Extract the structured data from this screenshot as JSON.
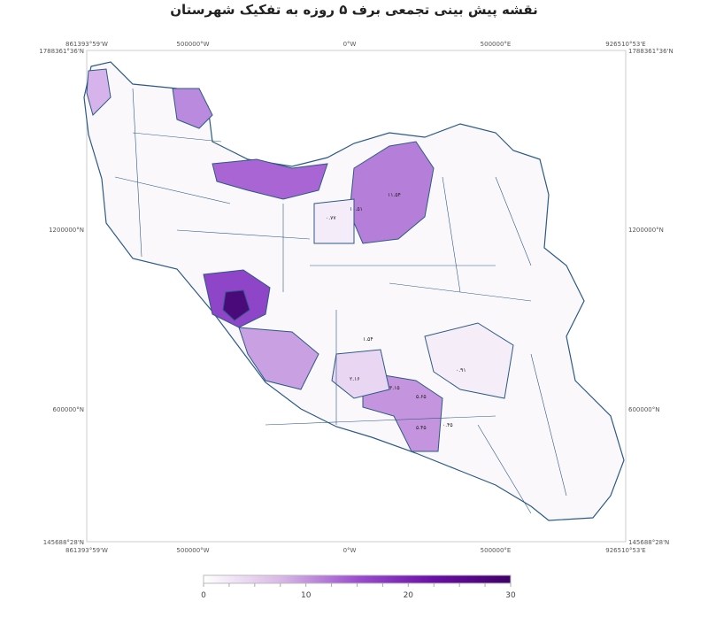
{
  "title": "نقشه پیش بینی تجمعی برف ۵ روزه به تفکیک شهرستان",
  "axes": {
    "top": [
      "861393°59'W",
      "500000°W",
      "0°W",
      "500000°E",
      "926510°53'E"
    ],
    "bottom": [
      "861393°59'W",
      "500000°W",
      "0°W",
      "500000°E",
      "926510°53'E"
    ],
    "left": [
      "1788361°36'N",
      "1200000°N",
      "600000°N",
      "145688°28'N"
    ],
    "right": [
      "1788361°36'N",
      "1200000°N",
      "600000°N",
      "145688°28'N"
    ]
  },
  "colorbar": {
    "min": 0,
    "max": 30,
    "ticks": [
      "0",
      "10",
      "20",
      "30"
    ],
    "colors": [
      "#ffffff",
      "#d9b8e6",
      "#9b4fcf",
      "#6a0fa6",
      "#3f0068"
    ]
  },
  "map_labels": [
    "۱۱.۵۴",
    "۱۰.۵۱",
    "۰.۷۷",
    "۱.۵۴",
    "۵.۴۵",
    "۳.۱۵",
    "۵.۶۵",
    "۰.۹۱",
    "۲.۱۶",
    "۰.۴۵"
  ],
  "colors": {
    "border": "#2b5a85",
    "frame": "#cccccc"
  }
}
